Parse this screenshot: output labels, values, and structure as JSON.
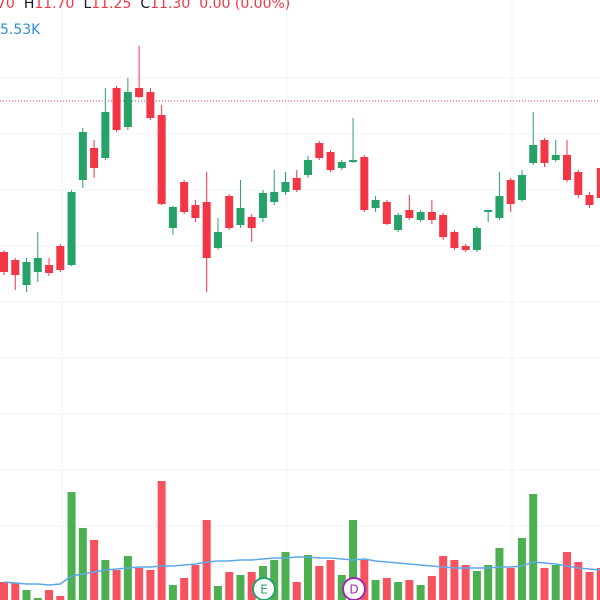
{
  "chart_data": {
    "type": "candlestick",
    "legend": {
      "open": "70",
      "items": [
        {
          "label": "H",
          "value": "11.70"
        },
        {
          "label": "L",
          "value": "11.25"
        },
        {
          "label": "C",
          "value": "11.30"
        }
      ],
      "change": "0.00 (0.00%)",
      "volume_ma": "5.53K"
    },
    "events": [
      "E",
      "D"
    ],
    "ylim": [
      7,
      13
    ],
    "vol_ylim": [
      0,
      90
    ],
    "price_line": 11.99,
    "up_color": "#26a269",
    "down_color": "#f23645",
    "vol_up_color": "#4caf50",
    "vol_down_color": "#f7525f",
    "ma_color": "#5ea8e6",
    "open": [
      10.48,
      10.4,
      10.15,
      10.28,
      10.35,
      10.54,
      10.35,
      11.2,
      11.52,
      11.42,
      12.12,
      11.73,
      12.12,
      12.08,
      11.85,
      10.72,
      11.18,
      10.95,
      10.98,
      10.52,
      11.04,
      10.75,
      10.83,
      10.82,
      10.98,
      11.08,
      11.22,
      11.25,
      11.57,
      11.48,
      11.32,
      11.38,
      11.43,
      10.92,
      10.98,
      10.7,
      10.9,
      10.8,
      10.88,
      10.85,
      10.68,
      10.54,
      10.5,
      10.88,
      10.82,
      11.2,
      11.0,
      11.37,
      11.6,
      11.4,
      11.45,
      11.28,
      11.05,
      11.32
    ],
    "high": [
      10.5,
      10.42,
      10.42,
      10.68,
      10.42,
      10.56,
      11.1,
      11.72,
      11.6,
      12.12,
      12.14,
      12.22,
      12.54,
      12.12,
      11.95,
      10.94,
      11.2,
      11.0,
      11.28,
      10.82,
      11.06,
      11.2,
      10.86,
      11.1,
      11.3,
      11.28,
      11.3,
      11.44,
      11.59,
      11.5,
      11.4,
      11.82,
      11.45,
      11.04,
      11.0,
      10.87,
      11.05,
      10.9,
      11.0,
      10.87,
      10.7,
      10.56,
      10.74,
      10.9,
      11.28,
      11.22,
      11.3,
      11.88,
      11.62,
      11.6,
      11.6,
      11.3,
      11.08,
      11.35
    ],
    "low": [
      10.25,
      10.1,
      10.08,
      10.18,
      10.24,
      10.28,
      10.34,
      11.12,
      11.22,
      11.4,
      11.68,
      11.7,
      12.02,
      11.8,
      10.95,
      10.65,
      10.86,
      10.78,
      10.08,
      10.5,
      10.7,
      10.72,
      10.58,
      10.78,
      10.95,
      11.05,
      11.08,
      11.22,
      11.4,
      11.28,
      11.3,
      11.37,
      10.88,
      10.88,
      10.75,
      10.68,
      10.8,
      10.78,
      10.76,
      10.6,
      10.5,
      10.48,
      10.48,
      10.78,
      10.8,
      10.88,
      10.98,
      11.35,
      11.33,
      11.38,
      11.18,
      11.02,
      10.92,
      11.0
    ],
    "close": [
      10.28,
      10.25,
      10.38,
      10.42,
      10.27,
      10.3,
      11.08,
      11.68,
      11.32,
      11.88,
      11.7,
      12.08,
      12.03,
      11.82,
      10.96,
      10.93,
      10.88,
      10.82,
      10.42,
      10.68,
      10.72,
      10.92,
      10.72,
      11.07,
      11.08,
      11.18,
      11.1,
      11.4,
      11.42,
      11.3,
      11.38,
      11.4,
      10.9,
      11.0,
      10.76,
      10.85,
      10.82,
      10.88,
      10.8,
      10.63,
      10.52,
      10.5,
      10.72,
      10.9,
      11.04,
      10.96,
      11.25,
      11.55,
      11.37,
      11.45,
      11.2,
      11.05,
      10.95,
      11.02
    ],
    "volume": [
      2.7,
      2.55,
      1.5,
      0.3,
      1.5,
      0.6,
      16.2,
      10.8,
      9,
      6,
      4.5,
      6.6,
      4.8,
      4.5,
      17.85,
      2.25,
      3.3,
      5.25,
      12,
      2.1,
      4.2,
      3.75,
      4.2,
      5.1,
      6,
      7.2,
      2.7,
      6.75,
      5.1,
      6,
      3.75,
      12,
      6,
      3,
      3.3,
      2.7,
      3,
      2.25,
      3.6,
      6.6,
      6,
      5.25,
      4.35,
      5.25,
      7.8,
      4.8,
      9.3,
      15.9,
      4.8,
      5.25,
      7.2,
      5.7,
      4.2,
      4.8
    ],
    "volume_ma": [
      2.7,
      2.55,
      2.4,
      2.4,
      2.25,
      2.4,
      3.6,
      3.9,
      4.2,
      4.5,
      4.65,
      4.8,
      4.95,
      4.95,
      5.1,
      5.1,
      5.25,
      5.4,
      5.7,
      5.85,
      5.85,
      6,
      6,
      6.15,
      6.3,
      6.3,
      6.45,
      6.45,
      6.3,
      6.3,
      6.15,
      6,
      6.15,
      5.85,
      5.7,
      5.55,
      5.4,
      5.25,
      5.1,
      4.95,
      4.8,
      4.8,
      4.8,
      4.8,
      4.95,
      4.95,
      5.1,
      5.7,
      5.55,
      5.4,
      5.1,
      4.8,
      4.65,
      4.5
    ]
  }
}
